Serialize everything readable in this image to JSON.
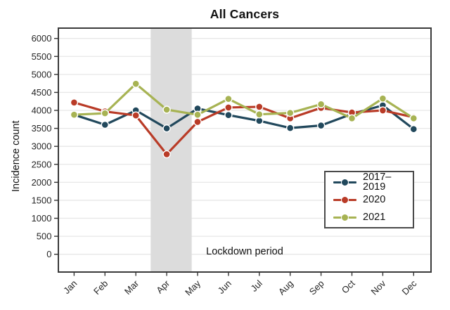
{
  "title": "All Cancers",
  "annotation": "Lockdown period",
  "chart_data": {
    "type": "line",
    "title": "All Cancers",
    "xlabel": "",
    "ylabel": "Incidence count",
    "ylim": [
      0,
      6000
    ],
    "ytick_step": 500,
    "yticks": [
      0,
      500,
      1000,
      1500,
      2000,
      2500,
      3000,
      3500,
      4000,
      4500,
      5000,
      5500,
      6000
    ],
    "categories": [
      "Jan",
      "Feb",
      "Mar",
      "Apr",
      "May",
      "Jun",
      "Jul",
      "Aug",
      "Sep",
      "Oct",
      "Nov",
      "Dec"
    ],
    "series": [
      {
        "name": "2017–2019",
        "color": "#21485c",
        "values": [
          3880,
          3600,
          4000,
          3500,
          4050,
          3870,
          3710,
          3510,
          3580,
          3900,
          4140,
          3480
        ]
      },
      {
        "name": "2020",
        "color": "#b93b27",
        "values": [
          4220,
          3970,
          3860,
          2780,
          3680,
          4080,
          4100,
          3780,
          4070,
          3940,
          4000,
          3810
        ]
      },
      {
        "name": "2021",
        "color": "#a7b353",
        "values": [
          3880,
          3920,
          4740,
          4020,
          3880,
          4320,
          3890,
          3930,
          4170,
          3780,
          4330,
          3780
        ]
      }
    ],
    "shaded_region": {
      "label": "Lockdown period",
      "start_category_index": 2.48,
      "end_category_index": 3.81,
      "color": "#dcdcdc"
    },
    "legend_position": "inside-bottom-right",
    "grid": "horizontal-only",
    "colors": {
      "panel_border": "#3a3a3a",
      "gridline": "#e7e7e7",
      "axis_text": "#262626",
      "background": "#ffffff"
    }
  }
}
